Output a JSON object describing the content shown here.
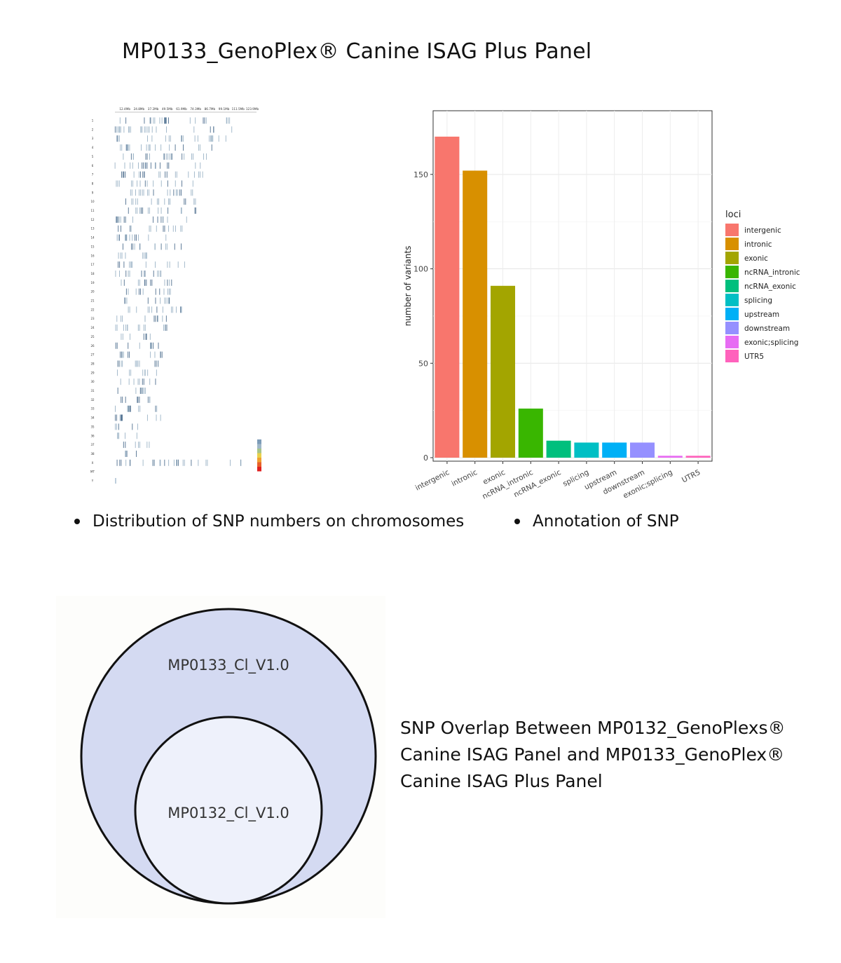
{
  "page": {
    "title": "MP0133_GenoPlex® Canine ISAG Plus Panel",
    "bullets": [
      "Distribution of SNP numbers on chromosomes",
      "Annotation of SNP"
    ],
    "overlap_caption": [
      "SNP Overlap Between MP0132_GenoPlexs®",
      "Canine ISAG Panel and MP0133_GenoPlex®",
      "Canine ISAG Plus Panel"
    ]
  },
  "chart_data": [
    {
      "type": "heatmap",
      "name": "SNP density along chromosomes",
      "x_ticks": [
        "12.4Mb",
        "24.8Mb",
        "37.2Mb",
        "49.5Mb",
        "61.9Mb",
        "74.3Mb",
        "86.7Mb",
        "99.1Mb",
        "111.5Mb",
        "123.9Mb"
      ],
      "rows": [
        "1",
        "2",
        "3",
        "4",
        "5",
        "6",
        "7",
        "8",
        "9",
        "10",
        "11",
        "12",
        "13",
        "14",
        "15",
        "16",
        "17",
        "18",
        "19",
        "20",
        "21",
        "22",
        "23",
        "24",
        "25",
        "26",
        "27",
        "28",
        "29",
        "30",
        "31",
        "32",
        "33",
        "34",
        "35",
        "36",
        "37",
        "38",
        "X",
        "MT",
        "Y"
      ],
      "legend_colors": [
        "#7d9cb8",
        "#9fb7c8",
        "#a6c48a",
        "#e8d14a",
        "#f0a030",
        "#e8602a",
        "#e02020"
      ]
    },
    {
      "type": "bar",
      "categories": [
        "intergenic",
        "intronic",
        "exonic",
        "ncRNA_intronic",
        "ncRNA_exonic",
        "splicing",
        "upstream",
        "downstream",
        "exonic;splicing",
        "UTR5"
      ],
      "values": [
        170,
        152,
        91,
        26,
        9,
        8,
        8,
        8,
        1,
        1
      ],
      "colors": [
        "#F8766D",
        "#D89000",
        "#A3A500",
        "#39B600",
        "#00BF7D",
        "#00BFC4",
        "#00B0F6",
        "#9590FF",
        "#E76BF3",
        "#FF62BC"
      ],
      "ylabel": "number of variants",
      "xlabel": "",
      "ylim": [
        0,
        180
      ],
      "yticks": [
        0,
        50,
        100,
        150
      ],
      "legend_title": "loci",
      "legend_position": "right",
      "grid": true
    },
    {
      "type": "venn",
      "sets": [
        {
          "name": "MP0133_Cl_V1.0",
          "color": "#d4daf2"
        },
        {
          "name": "MP0132_Cl_V1.0",
          "color": "#eef1fb"
        }
      ],
      "relation": "MP0132_Cl_V1.0 contained in MP0133_Cl_V1.0"
    }
  ]
}
